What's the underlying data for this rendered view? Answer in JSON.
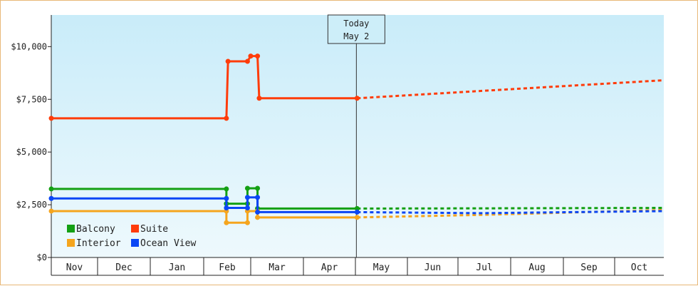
{
  "chart_data": {
    "type": "line",
    "title": "",
    "xlabel": "",
    "ylabel": "",
    "x_ticks": [
      "Nov",
      "Dec",
      "Jan",
      "Feb",
      "Mar",
      "Apr",
      "May",
      "Jun",
      "Jul",
      "Aug",
      "Sep",
      "Oct"
    ],
    "y_ticks": [
      "$0",
      "$2,500",
      "$5,000",
      "$7,500",
      "$10,000"
    ],
    "ylim": [
      0,
      11500
    ],
    "grid": false,
    "legend_position": "bottom-left",
    "annotation": {
      "line1": "Today",
      "line2": "May 2"
    },
    "series": [
      {
        "name": "Balcony",
        "color": "#14a014",
        "points": [
          [
            "Nov 1",
            3250
          ],
          [
            "Feb 15",
            3250
          ],
          [
            "Feb 15",
            2550
          ],
          [
            "Feb 28",
            2550
          ],
          [
            "Feb 28",
            3280
          ],
          [
            "Mar 5",
            3280
          ],
          [
            "Mar 5",
            2320
          ],
          [
            "May 2",
            2320
          ]
        ],
        "forecast": [
          [
            "May 2",
            2320
          ],
          [
            "Jul 15",
            2330
          ],
          [
            "Oct 31",
            2350
          ]
        ]
      },
      {
        "name": "Suite",
        "color": "#ff3c0a",
        "points": [
          [
            "Nov 1",
            6600
          ],
          [
            "Feb 15",
            6600
          ],
          [
            "Feb 16",
            9300
          ],
          [
            "Feb 28",
            9300
          ],
          [
            "Mar 1",
            9550
          ],
          [
            "Mar 5",
            9550
          ],
          [
            "Mar 6",
            7550
          ],
          [
            "May 2",
            7550
          ]
        ],
        "forecast": [
          [
            "May 2",
            7550
          ],
          [
            "Jul 15",
            7900
          ],
          [
            "Oct 31",
            8400
          ]
        ]
      },
      {
        "name": "Interior",
        "color": "#f5a51e",
        "points": [
          [
            "Nov 1",
            2200
          ],
          [
            "Feb 15",
            2200
          ],
          [
            "Feb 15",
            1650
          ],
          [
            "Feb 28",
            1650
          ],
          [
            "Feb 28",
            2200
          ],
          [
            "Mar 5",
            2200
          ],
          [
            "Mar 5",
            1900
          ],
          [
            "May 2",
            1900
          ]
        ],
        "forecast": [
          [
            "May 2",
            1900
          ],
          [
            "Jul 15",
            2020
          ],
          [
            "Oct 31",
            2250
          ]
        ]
      },
      {
        "name": "Ocean View",
        "color": "#0a46f5",
        "points": [
          [
            "Nov 1",
            2800
          ],
          [
            "Feb 15",
            2800
          ],
          [
            "Feb 15",
            2350
          ],
          [
            "Feb 28",
            2350
          ],
          [
            "Feb 28",
            2850
          ],
          [
            "Mar 5",
            2850
          ],
          [
            "Mar 5",
            2150
          ],
          [
            "May 2",
            2150
          ]
        ],
        "forecast": [
          [
            "May 2",
            2150
          ],
          [
            "Jul 15",
            2100
          ],
          [
            "Oct 31",
            2200
          ]
        ]
      }
    ],
    "legend_rows": [
      [
        "Balcony",
        "Suite"
      ],
      [
        "Interior",
        "Ocean View"
      ]
    ]
  }
}
